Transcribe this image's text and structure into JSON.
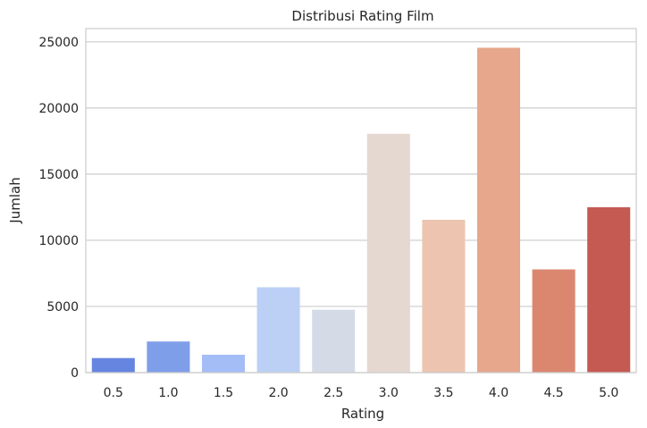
{
  "chart_data": {
    "type": "bar",
    "title": "Distribusi Rating Film",
    "xlabel": "Rating",
    "ylabel": "Jumlah",
    "categories": [
      "0.5",
      "1.0",
      "1.5",
      "2.0",
      "2.5",
      "3.0",
      "3.5",
      "4.0",
      "4.5",
      "5.0"
    ],
    "values": [
      1100,
      2350,
      1350,
      6450,
      4750,
      18050,
      11550,
      24550,
      7800,
      12500
    ],
    "colors": [
      "#6685e0",
      "#7f9eea",
      "#a4bdf7",
      "#bcd0f5",
      "#d5dbe6",
      "#e4d8d0",
      "#ecc4b0",
      "#e6a78d",
      "#db8770",
      "#c55a52"
    ],
    "ylim": [
      0,
      26000
    ],
    "yticks": [
      0,
      5000,
      10000,
      15000,
      20000,
      25000
    ],
    "grid": "horizontal",
    "legend": "none"
  }
}
